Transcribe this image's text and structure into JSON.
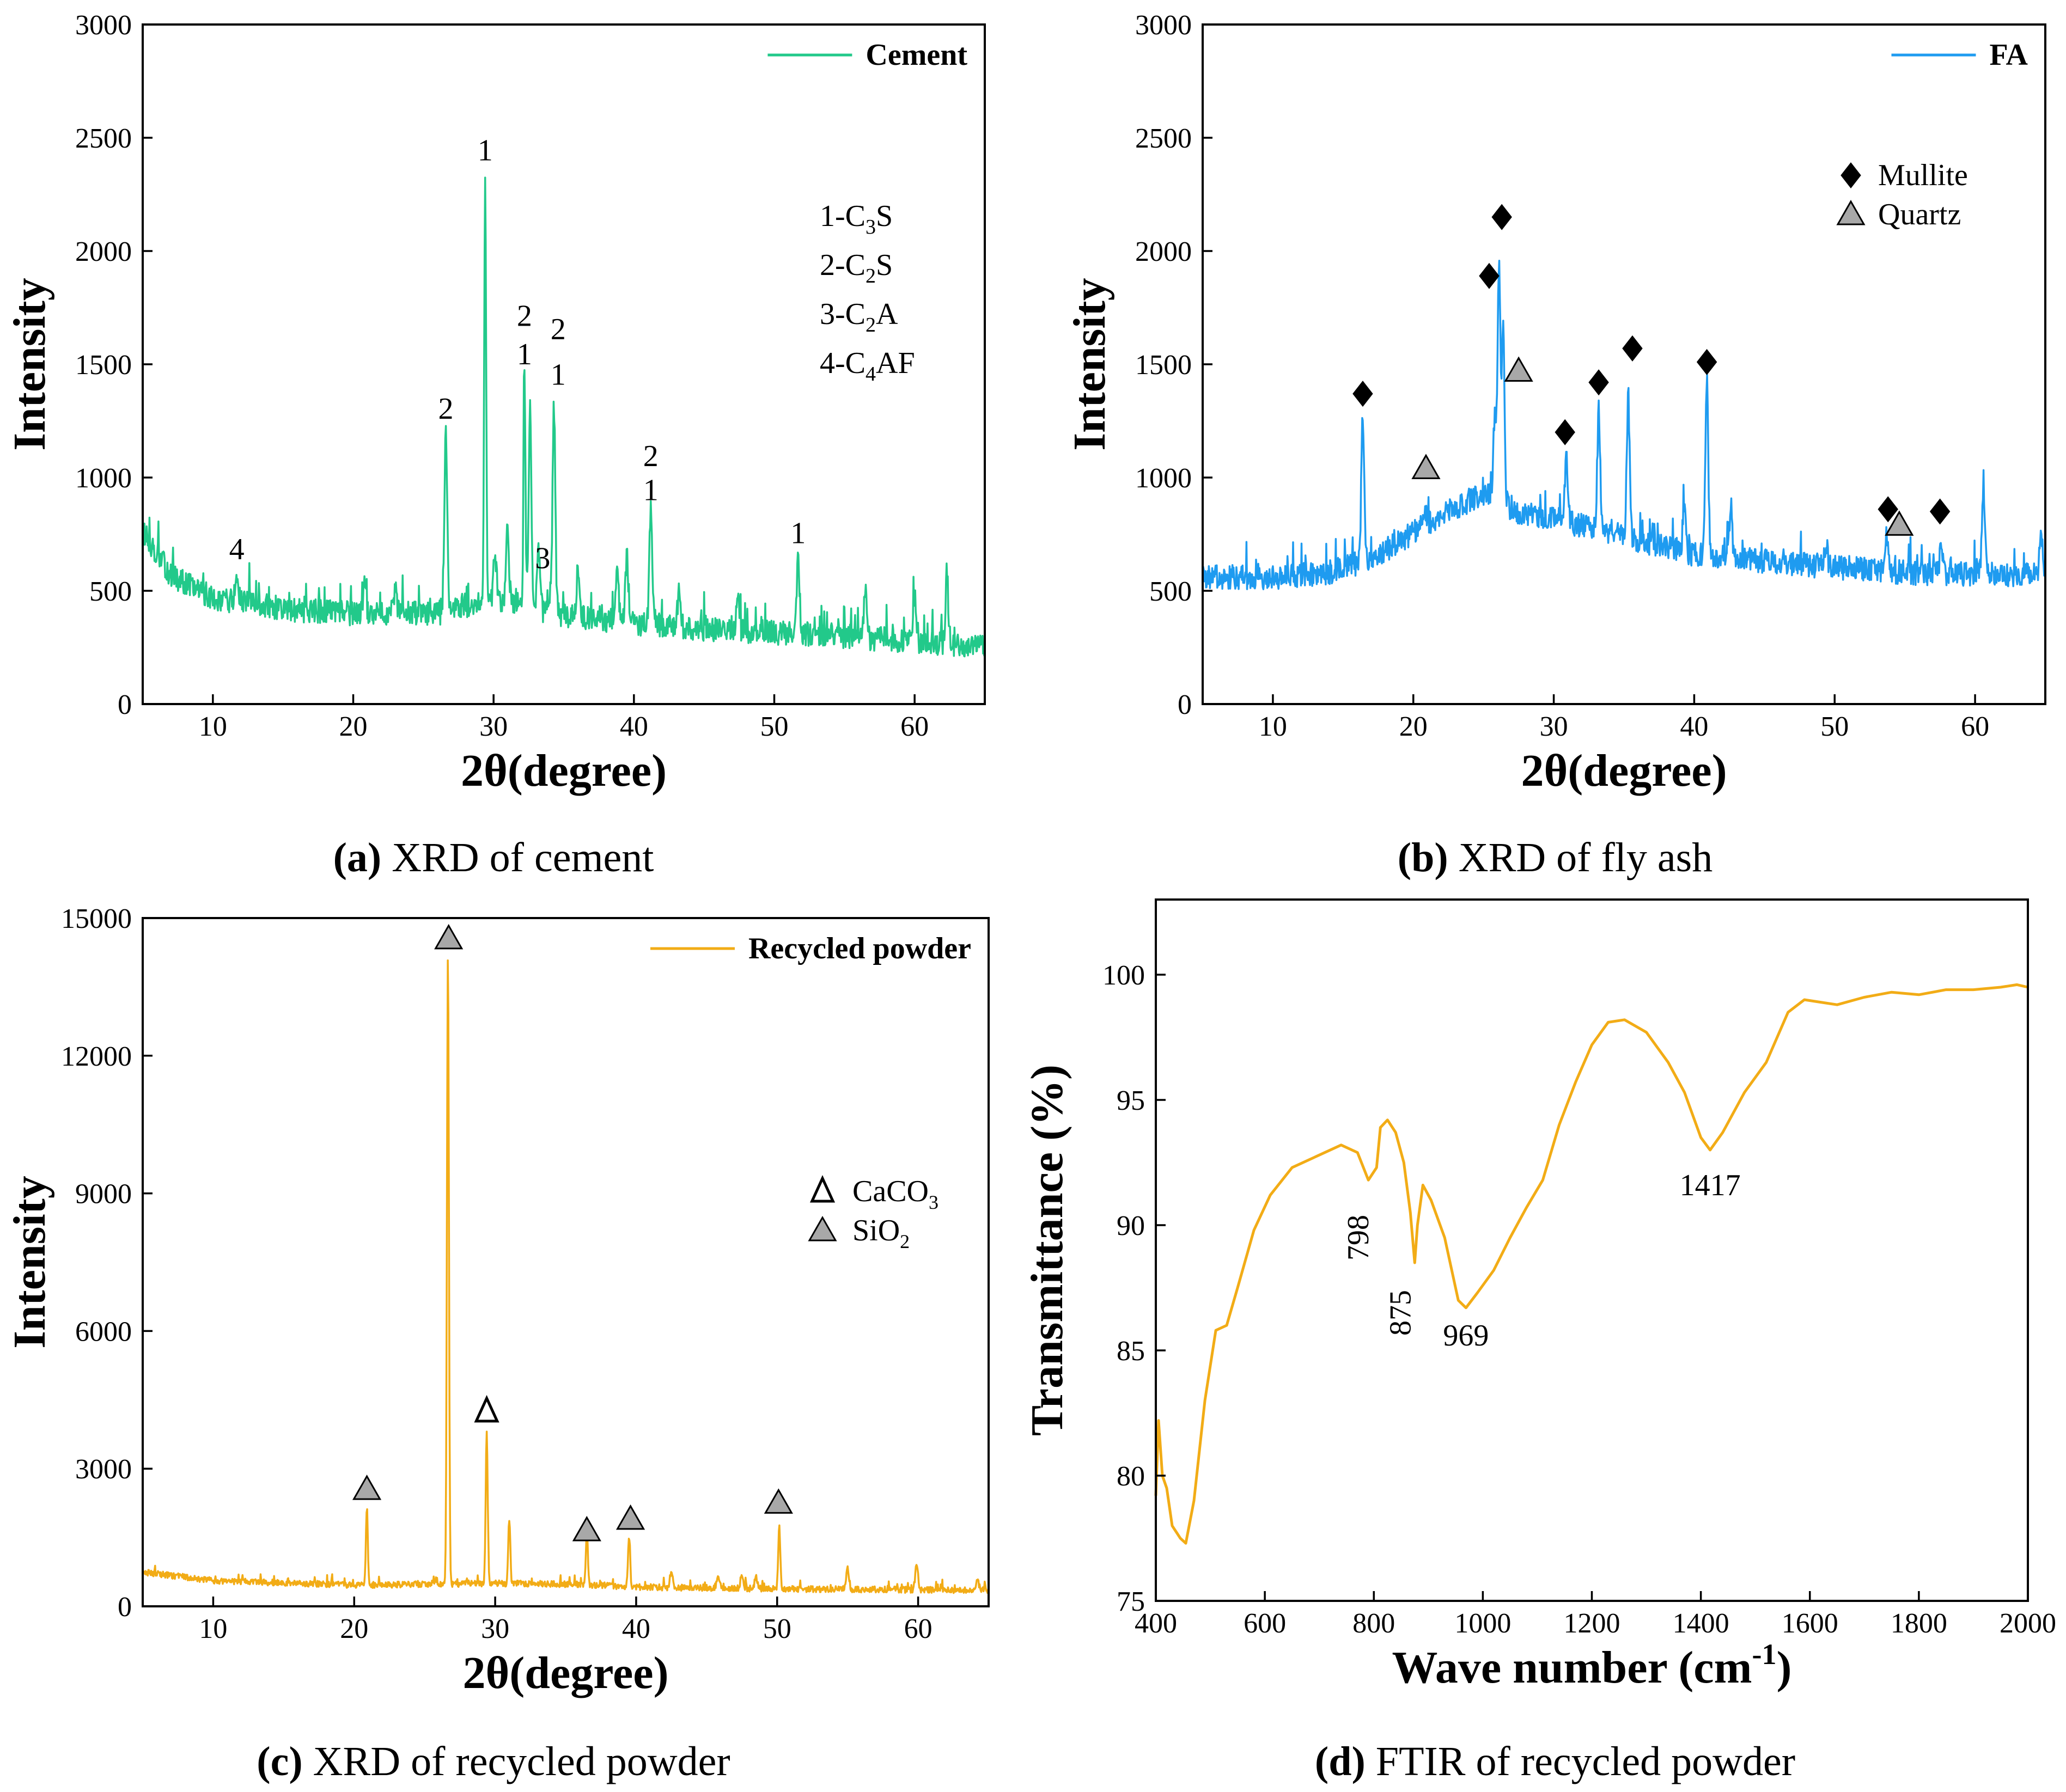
{
  "colors": {
    "cement": "#22c98a",
    "fa": "#1e9bf0",
    "recycled": "#f2ac16",
    "ftir": "#f2ac16",
    "marker_gray": "#a8a8a8",
    "black": "#000000"
  },
  "chart_data": [
    {
      "id": "a",
      "type": "line",
      "caption": {
        "label": "(a)",
        "text": " XRD of cement"
      },
      "xlabel": "2θ(degree)",
      "ylabel": "Intensity",
      "xlim": [
        5,
        65
      ],
      "ylim": [
        0,
        3000
      ],
      "xticks": [
        10,
        20,
        30,
        40,
        50,
        60
      ],
      "yticks": [
        0,
        500,
        1000,
        1500,
        2000,
        2500,
        3000
      ],
      "legend": "Cement",
      "baseline": [
        [
          5,
          760
        ],
        [
          7,
          570
        ],
        [
          10,
          470
        ],
        [
          15,
          420
        ],
        [
          20,
          400
        ],
        [
          26,
          400
        ],
        [
          30,
          470
        ],
        [
          34,
          400
        ],
        [
          38,
          370
        ],
        [
          45,
          330
        ],
        [
          55,
          300
        ],
        [
          65,
          250
        ]
      ],
      "peaks": [
        [
          11.7,
          120
        ],
        [
          20.8,
          130
        ],
        [
          23.0,
          110
        ],
        [
          26.6,
          770
        ],
        [
          29.4,
          1850
        ],
        [
          30.1,
          200
        ],
        [
          31.0,
          330
        ],
        [
          32.2,
          1020
        ],
        [
          32.6,
          820
        ],
        [
          33.2,
          250
        ],
        [
          34.3,
          920
        ],
        [
          36.0,
          180
        ],
        [
          38.8,
          240
        ],
        [
          39.5,
          310
        ],
        [
          41.2,
          500
        ],
        [
          43.2,
          140
        ],
        [
          47.4,
          150
        ],
        [
          51.7,
          350
        ],
        [
          56.5,
          250
        ],
        [
          60.0,
          230
        ],
        [
          62.3,
          310
        ]
      ],
      "peak_annotations": [
        {
          "x": 11.7,
          "y": 640,
          "text": "4"
        },
        {
          "x": 26.6,
          "y": 1260,
          "text": "2"
        },
        {
          "x": 29.4,
          "y": 2400,
          "text": "1"
        },
        {
          "x": 32.2,
          "y": 1670,
          "text": "2"
        },
        {
          "x": 32.2,
          "y": 1500,
          "text": "1"
        },
        {
          "x": 34.6,
          "y": 1610,
          "text": "2"
        },
        {
          "x": 34.6,
          "y": 1410,
          "text": "1"
        },
        {
          "x": 33.5,
          "y": 600,
          "text": "3"
        },
        {
          "x": 41.2,
          "y": 1050,
          "text": "2"
        },
        {
          "x": 41.2,
          "y": 900,
          "text": "1"
        },
        {
          "x": 51.7,
          "y": 710,
          "text": "1"
        }
      ],
      "phase_key": [
        {
          "pre": "1-C",
          "sub": "3",
          "post": "S"
        },
        {
          "pre": "2-C",
          "sub": "2",
          "post": "S"
        },
        {
          "pre": "3-C",
          "sub": "2",
          "post": "A"
        },
        {
          "pre": "4-C",
          "sub": "4",
          "post": "AF"
        }
      ]
    },
    {
      "id": "b",
      "type": "line",
      "caption": {
        "label": "(b)",
        "text": " XRD of fly ash"
      },
      "xlabel": "2θ(degree)",
      "ylabel": "Intensity",
      "xlim": [
        5,
        65
      ],
      "ylim": [
        0,
        3000
      ],
      "xticks": [
        10,
        20,
        30,
        40,
        50,
        60
      ],
      "yticks": [
        0,
        500,
        1000,
        1500,
        2000,
        2500,
        3000
      ],
      "legend": "FA",
      "baseline": [
        [
          5,
          560
        ],
        [
          10,
          560
        ],
        [
          14,
          580
        ],
        [
          17,
          640
        ],
        [
          20,
          760
        ],
        [
          24,
          900
        ],
        [
          26,
          940
        ],
        [
          27,
          850
        ],
        [
          30,
          820
        ],
        [
          35,
          740
        ],
        [
          40,
          660
        ],
        [
          45,
          630
        ],
        [
          55,
          580
        ],
        [
          65,
          570
        ]
      ],
      "peaks": [
        [
          16.4,
          650
        ],
        [
          20.8,
          80
        ],
        [
          26.1,
          1000
        ],
        [
          26.4,
          760
        ],
        [
          25.8,
          350
        ],
        [
          30.9,
          290
        ],
        [
          33.2,
          520
        ],
        [
          35.3,
          620
        ],
        [
          39.3,
          230
        ],
        [
          40.9,
          780
        ],
        [
          42.6,
          230
        ],
        [
          49.4,
          100
        ],
        [
          53.7,
          150
        ],
        [
          57.6,
          130
        ],
        [
          60.6,
          380
        ],
        [
          64.7,
          200
        ]
      ],
      "legend_markers": [
        {
          "shape": "diamond",
          "label": "Mullite"
        },
        {
          "shape": "triangle",
          "label": "Quartz"
        }
      ],
      "markers": [
        {
          "shape": "diamond",
          "x": 16.4,
          "y": 1370
        },
        {
          "shape": "diamond",
          "x": 25.4,
          "y": 1890
        },
        {
          "shape": "diamond",
          "x": 26.3,
          "y": 2150
        },
        {
          "shape": "diamond",
          "x": 30.8,
          "y": 1200
        },
        {
          "shape": "diamond",
          "x": 33.2,
          "y": 1420
        },
        {
          "shape": "diamond",
          "x": 35.6,
          "y": 1570
        },
        {
          "shape": "diamond",
          "x": 40.9,
          "y": 1510
        },
        {
          "shape": "diamond",
          "x": 53.8,
          "y": 860
        },
        {
          "shape": "diamond",
          "x": 57.5,
          "y": 850
        },
        {
          "shape": "triangle",
          "x": 20.9,
          "y": 1040
        },
        {
          "shape": "triangle",
          "x": 27.5,
          "y": 1470
        },
        {
          "shape": "triangle",
          "x": 54.6,
          "y": 790
        }
      ]
    },
    {
      "id": "c",
      "type": "line",
      "caption": {
        "label": "(c)",
        "text": " XRD of recycled powder"
      },
      "xlabel": "2θ(degree)",
      "ylabel": "Intensity",
      "xlim": [
        5,
        65
      ],
      "ylim": [
        0,
        15000
      ],
      "xticks": [
        10,
        20,
        30,
        40,
        50,
        60
      ],
      "yticks": [
        0,
        3000,
        6000,
        9000,
        12000,
        15000
      ],
      "legend": "Recycled powder",
      "baseline": [
        [
          5,
          750
        ],
        [
          10,
          560
        ],
        [
          20,
          460
        ],
        [
          30,
          500
        ],
        [
          36,
          480
        ],
        [
          40,
          420
        ],
        [
          50,
          380
        ],
        [
          65,
          350
        ]
      ],
      "peaks": [
        [
          20.9,
          1650
        ],
        [
          26.65,
          13700
        ],
        [
          29.4,
          3300
        ],
        [
          31.0,
          1400
        ],
        [
          36.5,
          1200
        ],
        [
          39.5,
          1100
        ],
        [
          42.5,
          350
        ],
        [
          45.8,
          250
        ],
        [
          47.5,
          300
        ],
        [
          48.5,
          250
        ],
        [
          50.15,
          1400
        ],
        [
          55.0,
          450
        ],
        [
          59.9,
          550
        ],
        [
          64.2,
          250
        ]
      ],
      "legend_markers": [
        {
          "shape": "open-triangle",
          "label": "CaCO",
          "sub": "3"
        },
        {
          "shape": "triangle",
          "label": "SiO",
          "sub": "2"
        }
      ],
      "markers": [
        {
          "shape": "triangle",
          "x": 20.9,
          "y": 2550
        },
        {
          "shape": "triangle",
          "x": 26.7,
          "y": 14550
        },
        {
          "shape": "open-triangle",
          "x": 29.4,
          "y": 4250
        },
        {
          "shape": "triangle",
          "x": 36.5,
          "y": 1650
        },
        {
          "shape": "triangle",
          "x": 39.6,
          "y": 1900
        },
        {
          "shape": "triangle",
          "x": 50.1,
          "y": 2250
        }
      ]
    },
    {
      "id": "d",
      "type": "line",
      "caption": {
        "label": "(d)",
        "text": " FTIR of recycled powder"
      },
      "xlabel": "Wave number (cm",
      "xlabel_sup": "-1",
      "xlabel_close": ")",
      "ylabel": "Transmittance (%)",
      "xlim": [
        400,
        2000
      ],
      "ylim": [
        75,
        103
      ],
      "xticks": [
        400,
        600,
        800,
        1000,
        1200,
        1400,
        1600,
        1800,
        2000
      ],
      "yticks": [
        75,
        80,
        85,
        90,
        95,
        100
      ],
      "points": [
        [
          400,
          79.2
        ],
        [
          405,
          82.2
        ],
        [
          412,
          80.0
        ],
        [
          420,
          79.5
        ],
        [
          430,
          78.0
        ],
        [
          445,
          77.5
        ],
        [
          455,
          77.3
        ],
        [
          470,
          79.0
        ],
        [
          490,
          83.0
        ],
        [
          510,
          85.8
        ],
        [
          530,
          86.0
        ],
        [
          550,
          87.5
        ],
        [
          580,
          89.8
        ],
        [
          610,
          91.2
        ],
        [
          650,
          92.3
        ],
        [
          700,
          92.8
        ],
        [
          740,
          93.2
        ],
        [
          770,
          92.9
        ],
        [
          790,
          91.8
        ],
        [
          805,
          92.3
        ],
        [
          812,
          93.9
        ],
        [
          825,
          94.2
        ],
        [
          840,
          93.7
        ],
        [
          855,
          92.5
        ],
        [
          867,
          90.5
        ],
        [
          875,
          88.5
        ],
        [
          880,
          90.0
        ],
        [
          890,
          91.6
        ],
        [
          905,
          91.0
        ],
        [
          930,
          89.5
        ],
        [
          955,
          87.0
        ],
        [
          969,
          86.7
        ],
        [
          990,
          87.3
        ],
        [
          1020,
          88.2
        ],
        [
          1050,
          89.5
        ],
        [
          1080,
          90.7
        ],
        [
          1110,
          91.8
        ],
        [
          1140,
          94.0
        ],
        [
          1170,
          95.7
        ],
        [
          1200,
          97.2
        ],
        [
          1230,
          98.1
        ],
        [
          1260,
          98.2
        ],
        [
          1300,
          97.7
        ],
        [
          1340,
          96.5
        ],
        [
          1370,
          95.3
        ],
        [
          1400,
          93.5
        ],
        [
          1417,
          93.0
        ],
        [
          1440,
          93.7
        ],
        [
          1480,
          95.3
        ],
        [
          1520,
          96.5
        ],
        [
          1560,
          98.5
        ],
        [
          1590,
          99.0
        ],
        [
          1620,
          98.9
        ],
        [
          1650,
          98.8
        ],
        [
          1700,
          99.1
        ],
        [
          1750,
          99.3
        ],
        [
          1800,
          99.2
        ],
        [
          1850,
          99.4
        ],
        [
          1900,
          99.4
        ],
        [
          1950,
          99.5
        ],
        [
          1980,
          99.6
        ],
        [
          2000,
          99.5
        ]
      ],
      "band_annotations": [
        {
          "x": 790,
          "y": 89.5,
          "text": "798",
          "rotate": true
        },
        {
          "x": 867,
          "y": 86.5,
          "text": "875",
          "rotate": true
        },
        {
          "x": 969,
          "y": 85.2,
          "text": "969",
          "rotate": false
        },
        {
          "x": 1417,
          "y": 91.2,
          "text": "1417",
          "rotate": false
        }
      ]
    }
  ]
}
